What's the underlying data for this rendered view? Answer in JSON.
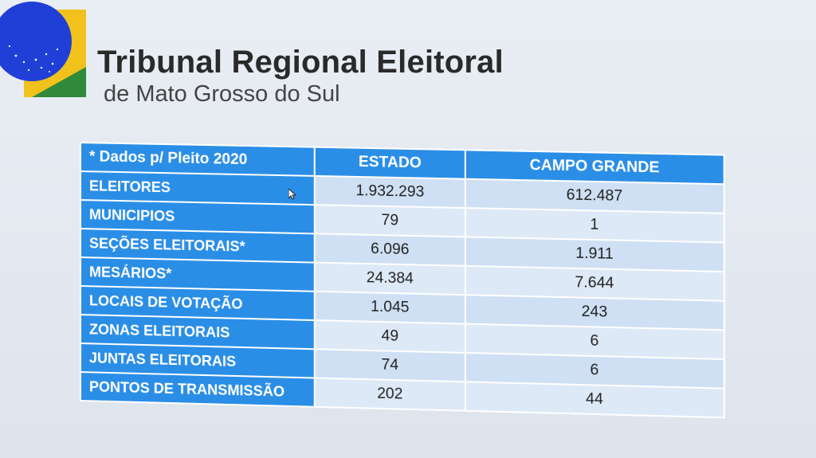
{
  "header": {
    "title": "Tribunal Regional Eleitoral",
    "subtitle": "de Mato Grosso do Sul"
  },
  "table": {
    "headers": [
      "* Dados p/ Pleito 2020",
      "ESTADO",
      "CAMPO GRANDE"
    ],
    "rows": [
      {
        "label": "ELEITORES",
        "estado": "1.932.293",
        "campo_grande": "612.487"
      },
      {
        "label": "MUNICIPIOS",
        "estado": "79",
        "campo_grande": "1"
      },
      {
        "label": "SEÇÕES ELEITORAIS*",
        "estado": "6.096",
        "campo_grande": "1.911"
      },
      {
        "label": "MESÁRIOS*",
        "estado": "24.384",
        "campo_grande": "7.644"
      },
      {
        "label": "LOCAIS DE VOTAÇÃO",
        "estado": "1.045",
        "campo_grande": "243"
      },
      {
        "label": "ZONAS ELEITORAIS",
        "estado": "49",
        "campo_grande": "6"
      },
      {
        "label": "JUNTAS ELEITORAIS",
        "estado": "74",
        "campo_grande": "6"
      },
      {
        "label": "PONTOS DE TRANSMISSÃO",
        "estado": "202",
        "campo_grande": "44"
      }
    ]
  },
  "colors": {
    "header_blue": "#2b8ee6",
    "cell_light": "#cfe0f4",
    "logo_blue": "#1f3fd6",
    "logo_yellow": "#f1c21b",
    "logo_green": "#2f8a3a"
  },
  "icons": {
    "logo": "brazil-emblem-icon",
    "cursor": "mouse-pointer-icon"
  }
}
